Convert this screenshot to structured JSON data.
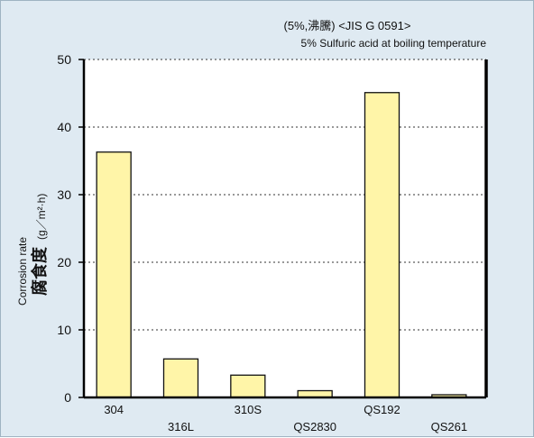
{
  "chart_data": {
    "type": "bar",
    "title_jp": "(5%,沸騰) <JIS G 0591>",
    "title_en": "5% Sulfuric acid at boiling temperature",
    "ylabel_en": "Corrosion rate",
    "ylabel_jp": "腐食度",
    "yunit": "(g／m²·h)",
    "categories": [
      "304",
      "316L",
      "310S",
      "QS2830",
      "QS192",
      "QS261"
    ],
    "values": [
      36.3,
      5.7,
      3.3,
      1.0,
      45.1,
      0.4
    ],
    "ylim": [
      0,
      50
    ],
    "yticks": [
      "0",
      "10",
      "20",
      "30",
      "40",
      "50"
    ],
    "grid": true,
    "bar_color": "#fff5a8",
    "bar_stroke": "#111111",
    "background": "#dfeaf2",
    "plot_background": "#ffffff"
  }
}
